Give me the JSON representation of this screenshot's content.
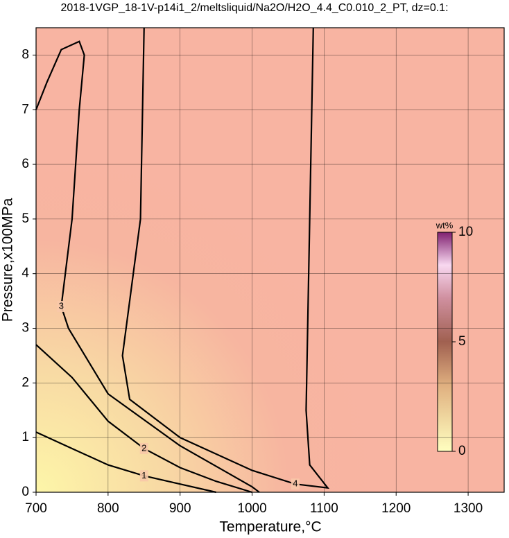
{
  "chart_data": {
    "type": "contour",
    "title": "2018-1VGP_18-1V-p14i1_2/meltsliquid/Na2O/H2O_4.4_C0.010_2_PT, dz=0.1:",
    "x_label": "Temperature,°C",
    "y_label": "Pressure,x100MPa",
    "xlim": [
      700,
      1350
    ],
    "ylim": [
      0,
      8.5
    ],
    "xticks": [
      700,
      800,
      900,
      1000,
      1100,
      1200,
      1300
    ],
    "yticks": [
      0,
      1,
      2,
      3,
      4,
      5,
      6,
      7,
      8
    ],
    "grid": true,
    "line_color": "#000000",
    "contours": [
      {
        "level": 1,
        "x": [
          700,
          750,
          800,
          850,
          900,
          950
        ],
        "y": [
          1.1,
          0.8,
          0.5,
          0.3,
          0.15,
          0
        ]
      },
      {
        "level": 2,
        "x": [
          700,
          750,
          800,
          850,
          900,
          950,
          1000
        ],
        "y": [
          2.7,
          2.1,
          1.3,
          0.8,
          0.45,
          0.2,
          0
        ]
      },
      {
        "level": 3,
        "x": [
          700,
          715,
          735,
          760,
          767,
          760,
          750,
          735,
          745,
          800,
          900,
          960,
          1000,
          1010
        ],
        "y": [
          7.0,
          7.5,
          8.1,
          8.25,
          8.0,
          7.0,
          5.0,
          3.4,
          3.0,
          1.8,
          0.85,
          0.4,
          0.1,
          0
        ]
      },
      {
        "level": 4,
        "x": [
          850,
          845,
          820,
          830,
          900,
          1000,
          1060,
          1105,
          1080,
          1075,
          1080,
          1085
        ],
        "y": [
          8.5,
          5.0,
          2.5,
          1.7,
          1.0,
          0.4,
          0.15,
          0.08,
          0.5,
          1.5,
          5.0,
          8.5
        ]
      }
    ],
    "colorbar": {
      "label": "wt%",
      "lim": [
        0,
        10
      ],
      "ticks": [
        0,
        5,
        10
      ]
    }
  }
}
